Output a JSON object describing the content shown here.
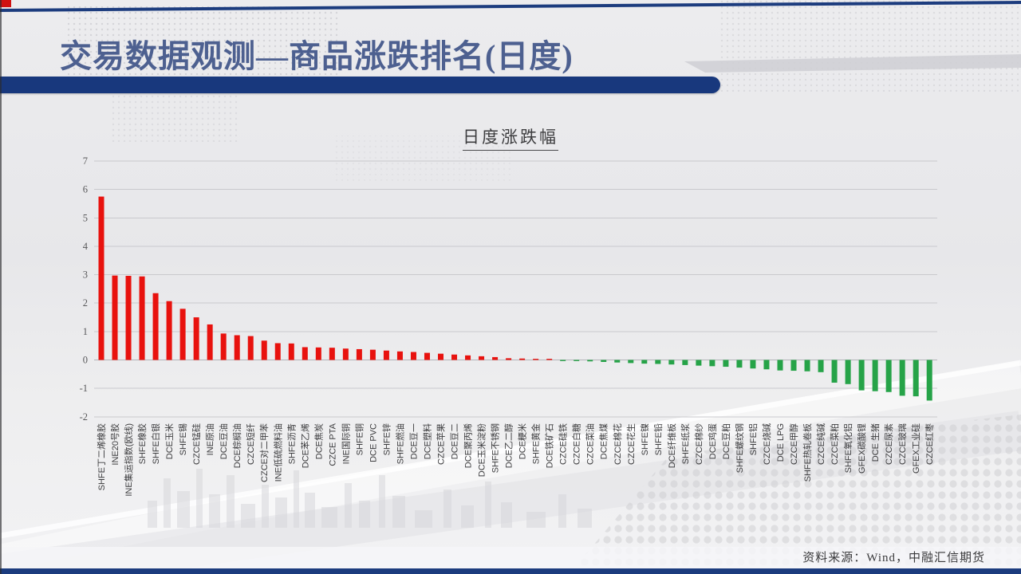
{
  "slide": {
    "title": "交易数据观测—商品涨跌排名(日度)",
    "footer_source": "资料来源：Wind，中融汇信期货"
  },
  "chart_data": {
    "type": "bar",
    "title": "日度涨跌幅",
    "xlabel": "",
    "ylabel": "",
    "ylim": [
      -2,
      7
    ],
    "y_ticks": [
      7,
      6,
      5,
      4,
      3,
      2,
      1,
      0,
      -1,
      -2
    ],
    "grid": true,
    "legend": "none",
    "positive_color": "#e8120e",
    "negative_color": "#26a348",
    "categories": [
      "SHFE丁二烯橡胶",
      "INE20号胶",
      "INE集运指数(欧线)",
      "SHFE橡胶",
      "SHFE白银",
      "DCE玉米",
      "SHFE锡",
      "CZCE锰硅",
      "INE原油",
      "DCE豆油",
      "DCE棕榈油",
      "CZCE短纤",
      "CZCE对二甲苯",
      "INE低硫燃料油",
      "SHFE沥青",
      "DCE苯乙烯",
      "DCE焦炭",
      "CZCE PTA",
      "INE国际铜",
      "SHFE铜",
      "DCE PVC",
      "SHFE锌",
      "SHFE燃油",
      "DCE豆一",
      "DCE塑料",
      "CZCE苹果",
      "DCE豆二",
      "DCE聚丙烯",
      "DCE玉米淀粉",
      "SHFE不锈钢",
      "DCE乙二醇",
      "DCE粳米",
      "SHFE黄金",
      "DCE铁矿石",
      "CZCE硅铁",
      "CZCE白糖",
      "CZCE菜油",
      "DCE焦煤",
      "CZCE棉花",
      "CZCE花生",
      "SHFE镍",
      "SHFE铅",
      "DCE纤维板",
      "SHFE纸浆",
      "CZCE棉纱",
      "DCE鸡蛋",
      "DCE豆粕",
      "SHFE螺纹钢",
      "SHFE铝",
      "CZCE烧碱",
      "DCE LPG",
      "CZCE甲醇",
      "SHFE热轧卷板",
      "CZCE纯碱",
      "CZCE菜粕",
      "SHFE氧化铝",
      "GFEX碳酸锂",
      "DCE 生猪",
      "CZCE尿素",
      "CZCE玻璃",
      "GFEX工业硅",
      "CZCE红枣"
    ],
    "values": [
      5.75,
      2.97,
      2.96,
      2.94,
      2.35,
      2.07,
      1.8,
      1.5,
      1.25,
      0.93,
      0.87,
      0.84,
      0.68,
      0.59,
      0.58,
      0.45,
      0.44,
      0.43,
      0.4,
      0.38,
      0.36,
      0.33,
      0.3,
      0.28,
      0.25,
      0.22,
      0.19,
      0.16,
      0.13,
      0.1,
      0.06,
      0.05,
      0.02,
      0.01,
      -0.01,
      -0.02,
      -0.05,
      -0.07,
      -0.09,
      -0.11,
      -0.13,
      -0.14,
      -0.16,
      -0.18,
      -0.2,
      -0.22,
      -0.24,
      -0.27,
      -0.3,
      -0.33,
      -0.37,
      -0.38,
      -0.4,
      -0.43,
      -0.8,
      -0.85,
      -1.07,
      -1.1,
      -1.13,
      -1.26,
      -1.28,
      -1.43
    ]
  }
}
